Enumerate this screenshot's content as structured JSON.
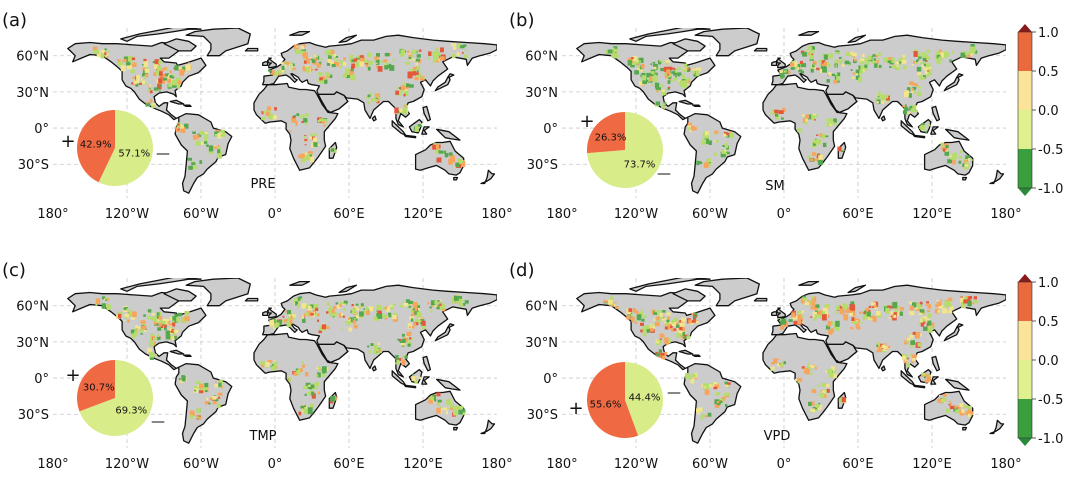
{
  "colors": {
    "ocean": "#ffffff",
    "land": "#cccccc",
    "coast": "#111111",
    "grid": "#c8c8c8",
    "positive": "#ef6a43",
    "negative": "#d8ec8a",
    "colorbar": [
      "#3c9f3e",
      "#dff08f",
      "#fbe39a",
      "#ea6a3e"
    ],
    "arrow_low": "#2a8a3a",
    "arrow_high": "#8b1a1a"
  },
  "axes": {
    "lon_ticks": [
      "180°",
      "120°W",
      "60°W",
      "0°",
      "60°E",
      "120°E",
      "180°"
    ],
    "lat_ticks": [
      "60°N",
      "30°N",
      "0°",
      "30°S"
    ]
  },
  "panels": [
    {
      "label": "(a)",
      "variable": "PRE",
      "plus_sign": "+",
      "minus_sign": "—",
      "pie": {
        "positive_pct": 42.9,
        "negative_pct": 57.1,
        "positive_label": "42.9%",
        "negative_label": "57.1%"
      }
    },
    {
      "label": "(b)",
      "variable": "SM",
      "plus_sign": "+",
      "minus_sign": "—",
      "pie": {
        "positive_pct": 26.3,
        "negative_pct": 73.7,
        "positive_label": "26.3%",
        "negative_label": "73.7%"
      }
    },
    {
      "label": "(c)",
      "variable": "TMP",
      "plus_sign": "+",
      "minus_sign": "—",
      "pie": {
        "positive_pct": 30.7,
        "negative_pct": 69.3,
        "positive_label": "30.7%",
        "negative_label": "69.3%"
      }
    },
    {
      "label": "(d)",
      "variable": "VPD",
      "plus_sign": "+",
      "minus_sign": "—",
      "pie": {
        "positive_pct": 55.6,
        "negative_pct": 44.4,
        "positive_label": "55.6%",
        "negative_label": "44.4%"
      }
    }
  ],
  "colorbar": {
    "ticks": [
      "1.0",
      "0.5",
      "0.0",
      "-0.5",
      "-1.0"
    ],
    "bounds": [
      1.0,
      0.5,
      0.0,
      -0.5,
      -1.0
    ]
  }
}
